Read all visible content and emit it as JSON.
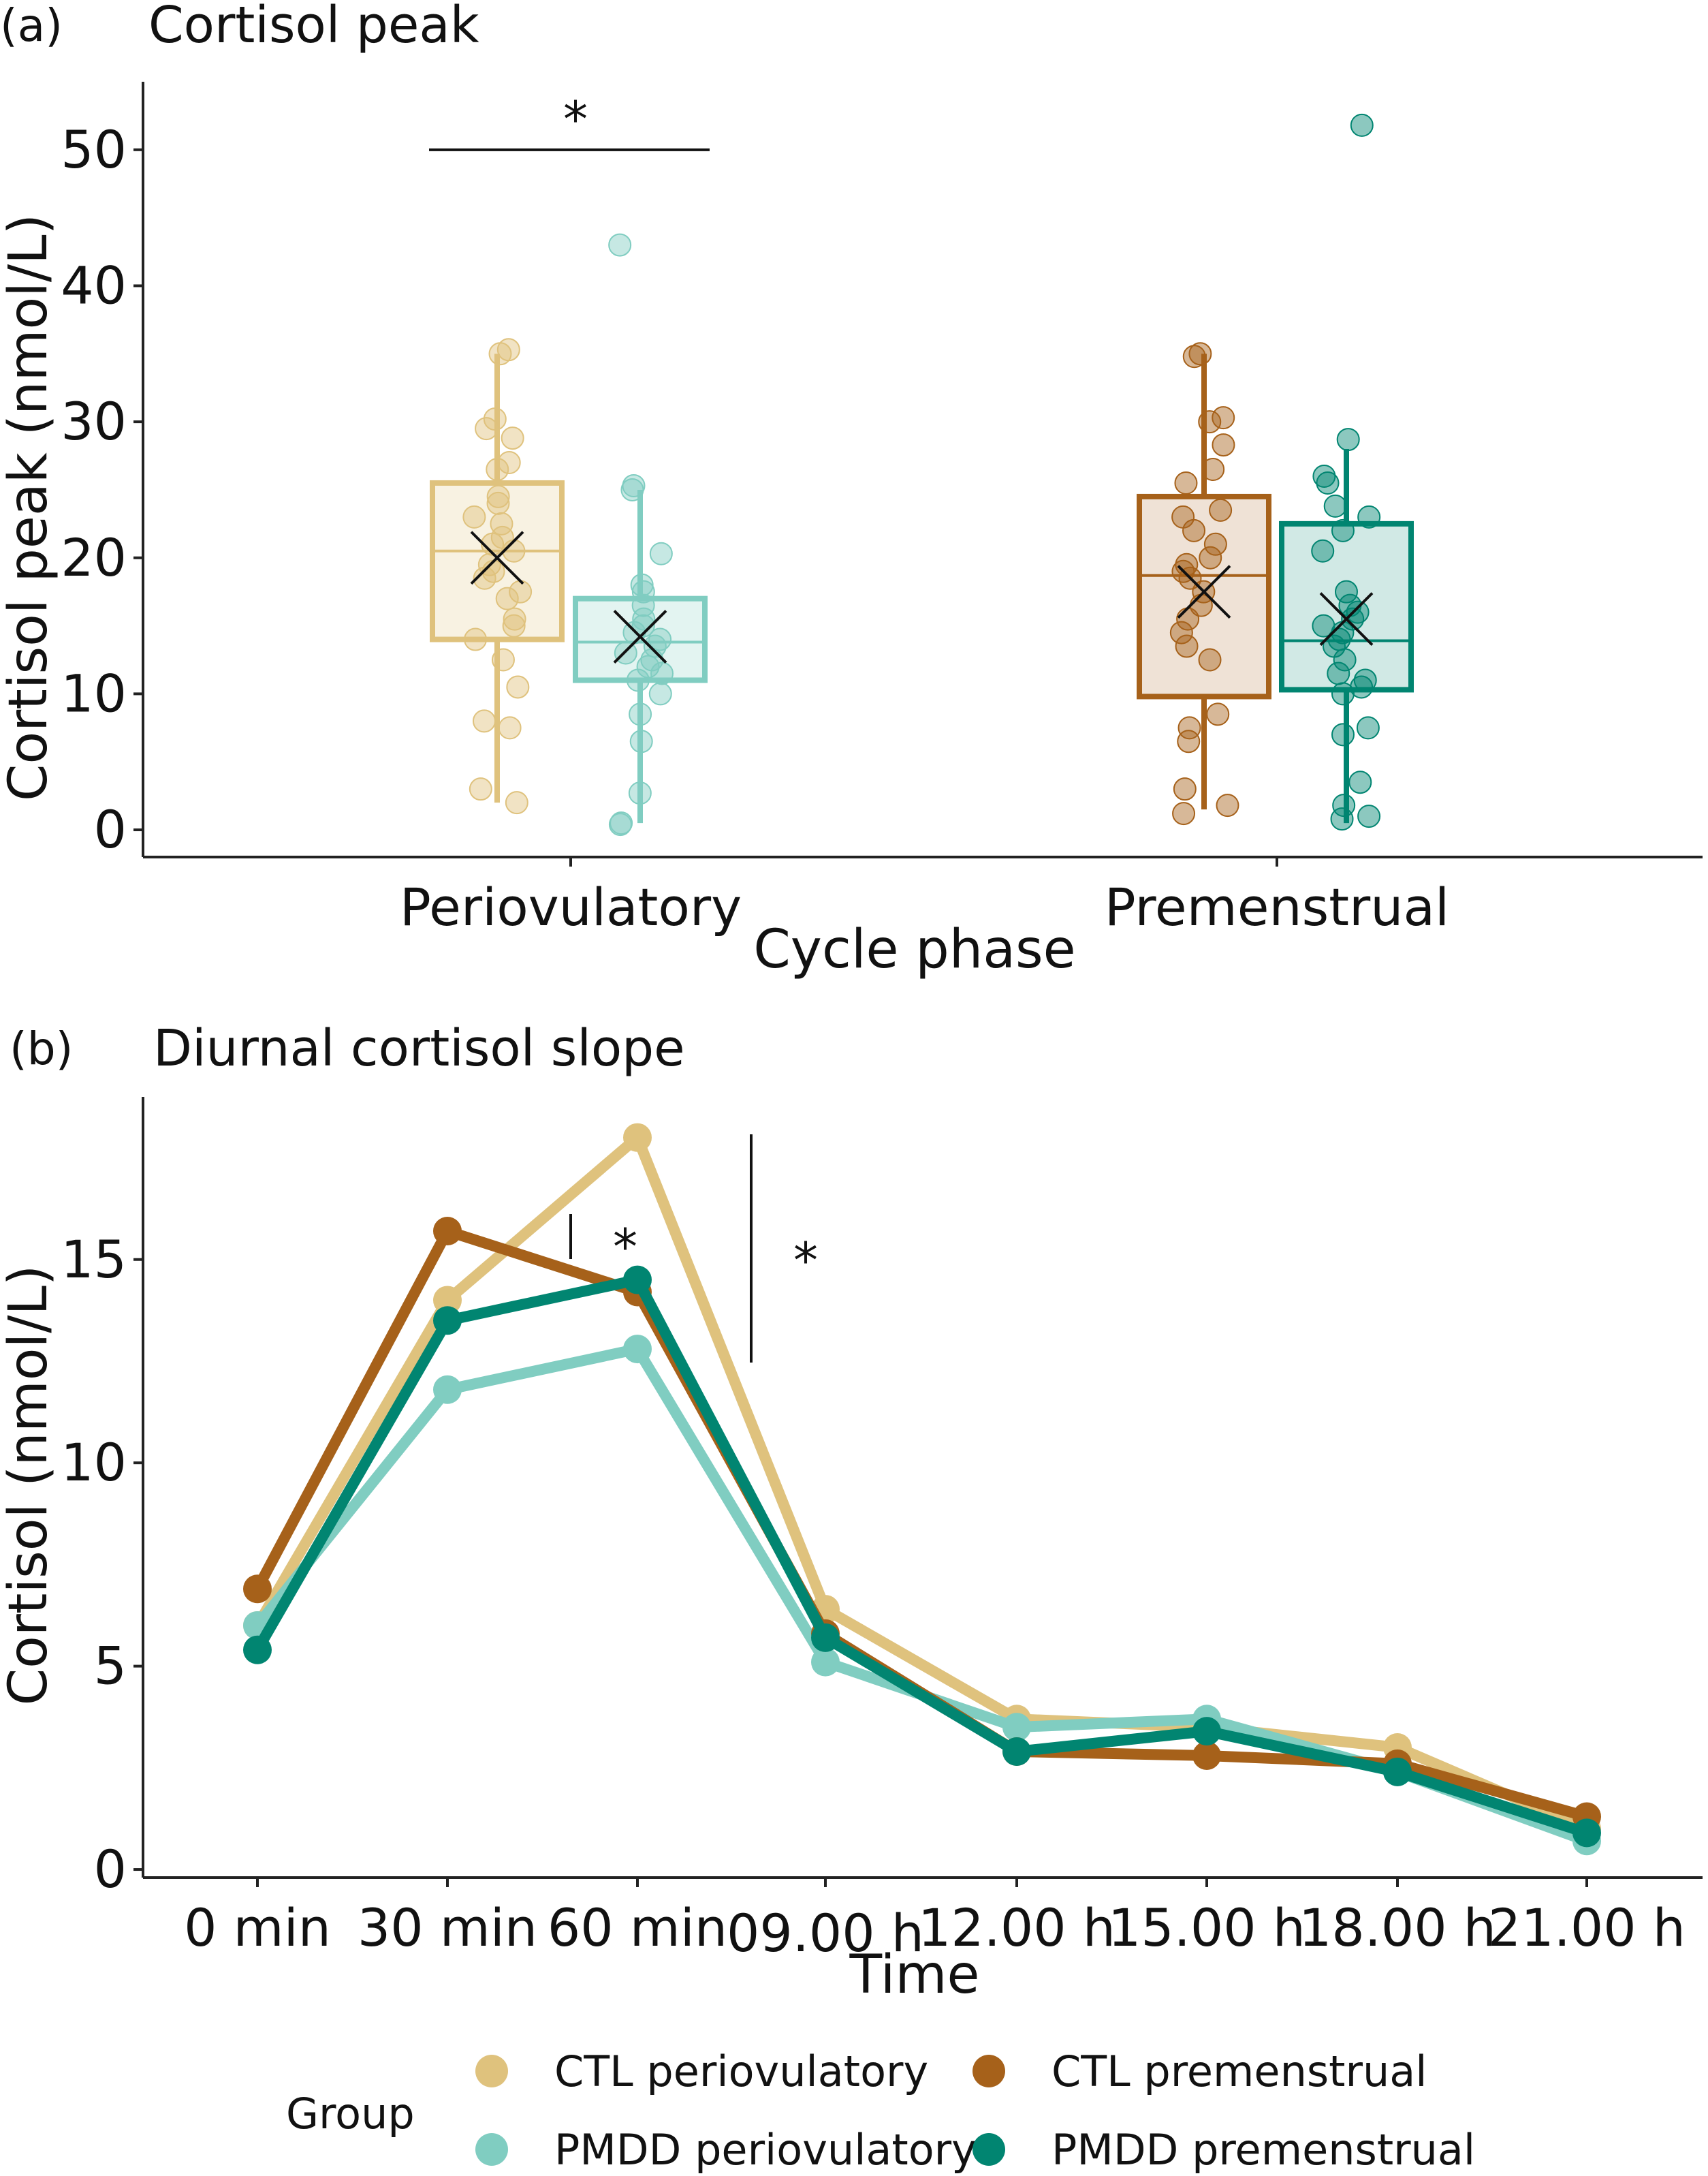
{
  "chart_data": [
    {
      "type": "box",
      "panel_label": "(a)",
      "title": "Cortisol peak",
      "xlabel": "Cycle phase",
      "ylabel": "Cortisol peak (nmol/L)",
      "ylim": [
        -2,
        55
      ],
      "yticks": [
        0,
        10,
        20,
        30,
        40,
        50
      ],
      "categories": [
        "Periovulatory",
        "Premenstrual"
      ],
      "boxes": [
        {
          "group": "CTL",
          "phase": "Periovulatory",
          "color": "#DFC27D",
          "q1": 14,
          "median": 20.5,
          "q3": 25.5,
          "whisker_low": 2,
          "whisker_high": 35,
          "mean": 20,
          "points": [
            35.3,
            35.0,
            30.2,
            29.5,
            28.8,
            27.0,
            26.5,
            24.5,
            24.0,
            23.0,
            22.5,
            21.5,
            21.0,
            20.5,
            19.5,
            19.0,
            18.5,
            17.5,
            17.0,
            15.5,
            15.0,
            14.0,
            12.5,
            10.5,
            8.0,
            7.5,
            3.0,
            2.0
          ]
        },
        {
          "group": "PMDD",
          "phase": "Periovulatory",
          "color": "#80CDC1",
          "q1": 11,
          "median": 13.8,
          "q3": 17,
          "whisker_low": 0.5,
          "whisker_high": 25,
          "mean": 14.2,
          "points": [
            43.0,
            25.3,
            25.0,
            20.3,
            18.0,
            17.5,
            16.5,
            15.5,
            15.0,
            14.5,
            14.0,
            13.5,
            13.0,
            12.5,
            12.0,
            11.5,
            11.0,
            10.0,
            8.5,
            6.5,
            2.7,
            0.5,
            0.4
          ]
        },
        {
          "group": "CTL",
          "phase": "Premenstrual",
          "color": "#A6611A",
          "q1": 9.8,
          "median": 18.7,
          "q3": 24.5,
          "whisker_low": 1.5,
          "whisker_high": 35,
          "mean": 17.5,
          "points": [
            35.0,
            34.8,
            30.3,
            30.0,
            28.3,
            26.5,
            25.5,
            23.5,
            23.0,
            22.0,
            21.0,
            20.0,
            19.5,
            19.0,
            18.5,
            17.5,
            16.5,
            15.5,
            14.5,
            13.5,
            12.5,
            8.5,
            7.5,
            6.5,
            3.0,
            1.8,
            1.2
          ]
        },
        {
          "group": "PMDD",
          "phase": "Premenstrual",
          "color": "#018571",
          "q1": 10.3,
          "median": 13.9,
          "q3": 22.5,
          "whisker_low": 0.5,
          "whisker_high": 28,
          "mean": 15.5,
          "points": [
            51.8,
            28.7,
            26.0,
            25.5,
            23.8,
            23.0,
            22.0,
            20.5,
            17.5,
            16.5,
            16.0,
            15.5,
            15.0,
            14.5,
            14.0,
            13.5,
            12.5,
            11.5,
            11.0,
            10.5,
            10.0,
            7.5,
            7.0,
            3.5,
            1.8,
            1.0,
            0.8
          ]
        }
      ],
      "annotations": [
        {
          "text": "*",
          "between": [
            "CTL Periovulatory",
            "PMDD Periovulatory"
          ],
          "y": 50
        }
      ],
      "grid": false
    },
    {
      "type": "line",
      "panel_label": "(b)",
      "title": "Diurnal cortisol slope",
      "xlabel": "Time",
      "ylabel": "Cortisol (nmol/L)",
      "x": [
        "0 min",
        "30 min",
        "60 min",
        "09.00 h",
        "12.00 h",
        "15.00 h",
        "18.00 h",
        "21.00 h"
      ],
      "ylim": [
        -0.2,
        19
      ],
      "yticks": [
        0,
        5,
        10,
        15
      ],
      "series": [
        {
          "name": "CTL periovulatory",
          "color": "#DFC27D",
          "values": [
            6.0,
            14.0,
            18.0,
            6.4,
            3.7,
            3.5,
            3.0,
            1.0
          ]
        },
        {
          "name": "PMDD periovulatory",
          "color": "#80CDC1",
          "values": [
            6.0,
            11.8,
            12.8,
            5.1,
            3.5,
            3.7,
            2.4,
            0.7
          ]
        },
        {
          "name": "CTL premenstrual",
          "color": "#A6611A",
          "values": [
            6.9,
            15.7,
            14.2,
            5.8,
            2.9,
            2.8,
            2.6,
            1.3
          ]
        },
        {
          "name": "PMDD premenstrual",
          "color": "#018571",
          "values": [
            5.4,
            13.5,
            14.5,
            5.7,
            2.9,
            3.4,
            2.4,
            0.9
          ]
        }
      ],
      "annotations": [
        {
          "text": "*",
          "between": [
            "30 min",
            "60 min"
          ]
        },
        {
          "text": "*",
          "between": [
            "60 min",
            "09.00 h"
          ]
        }
      ],
      "legend": {
        "title": "Group",
        "position": "bottom"
      },
      "grid": false
    }
  ]
}
